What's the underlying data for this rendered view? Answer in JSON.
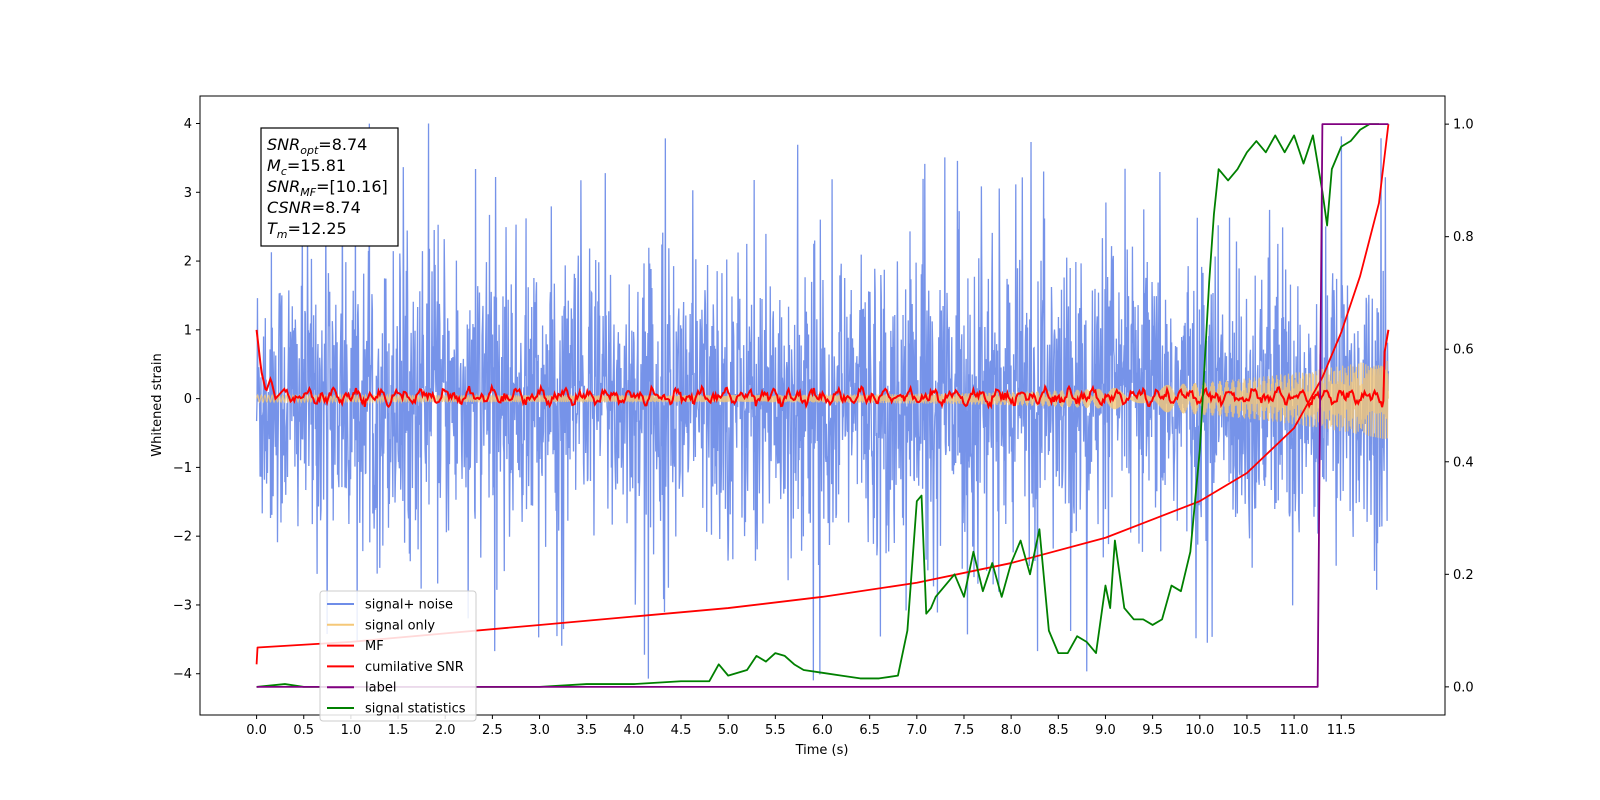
{
  "chart_data": {
    "type": "line",
    "title": "",
    "xlabel": "Time (s)",
    "ylabel": "Whitened strain",
    "ylabel_right": "",
    "xlim": [
      -0.6,
      12.6
    ],
    "ylim": [
      -4.6,
      4.4
    ],
    "ylim_right": [
      -0.05,
      1.05
    ],
    "x_ticks": [
      0.0,
      0.5,
      1.0,
      1.5,
      2.0,
      2.5,
      3.0,
      3.5,
      4.0,
      4.5,
      5.0,
      5.5,
      6.0,
      6.5,
      7.0,
      7.5,
      8.0,
      8.5,
      9.0,
      9.5,
      10.0,
      10.5,
      11.0,
      11.5
    ],
    "x_tick_labels": [
      "0.0",
      "0.5",
      "1.0",
      "1.5",
      "2.0",
      "2.5",
      "3.0",
      "3.5",
      "4.0",
      "4.5",
      "5.0",
      "5.5",
      "6.0",
      "6.5",
      "7.0",
      "7.5",
      "8.0",
      "8.5",
      "9.0",
      "9.5",
      "10.0",
      "10.5",
      "11.0",
      "11.5"
    ],
    "y_ticks": [
      -4,
      -3,
      -2,
      -1,
      0,
      1,
      2,
      3,
      4
    ],
    "y_tick_labels": [
      "−4",
      "−3",
      "−2",
      "−1",
      "0",
      "1",
      "2",
      "3",
      "4"
    ],
    "y_ticks_right": [
      0.0,
      0.2,
      0.4,
      0.6,
      0.8,
      1.0
    ],
    "y_tick_labels_right": [
      "0.0",
      "0.2",
      "0.4",
      "0.6",
      "0.8",
      "1.0"
    ],
    "grid": false,
    "legend_position": "lower-left",
    "series": [
      {
        "name": "signal+ noise",
        "axis": "left",
        "color": "#6f8de8",
        "note": "dense noise, roughly ±2.5 with spikes to ±4",
        "x_range": [
          0,
          12
        ]
      },
      {
        "name": "signal only",
        "axis": "left",
        "color": "#f5c878",
        "note": "chirp, amplitude growing to about ±0.6 near 12 s",
        "x_range": [
          0,
          12
        ]
      },
      {
        "name": "MF",
        "axis": "left",
        "color": "#ff0000",
        "x": [
          0.0,
          0.05,
          0.1,
          0.15,
          0.2,
          0.3,
          0.5,
          1.0,
          2.0,
          3.0,
          4.0,
          5.0,
          6.0,
          7.0,
          8.0,
          9.0,
          10.0,
          11.0,
          11.5,
          11.9,
          12.0
        ],
        "y": [
          1.0,
          0.4,
          0.1,
          0.3,
          0.0,
          0.15,
          0.05,
          0.1,
          0.05,
          0.1,
          0.05,
          0.15,
          0.05,
          0.1,
          0.15,
          0.1,
          0.15,
          0.1,
          0.2,
          0.2,
          1.0
        ]
      },
      {
        "name": "cumilative SNR",
        "axis": "right",
        "color": "#ff0000",
        "x": [
          0.0,
          0.01,
          1.0,
          2.0,
          3.0,
          4.0,
          5.0,
          6.0,
          7.0,
          8.0,
          9.0,
          10.0,
          10.5,
          11.0,
          11.3,
          11.5,
          11.7,
          11.9,
          12.0
        ],
        "y": [
          0.04,
          0.07,
          0.08,
          0.095,
          0.11,
          0.125,
          0.14,
          0.16,
          0.185,
          0.22,
          0.265,
          0.33,
          0.38,
          0.46,
          0.55,
          0.63,
          0.73,
          0.86,
          1.0
        ]
      },
      {
        "name": "label",
        "axis": "right",
        "color": "#800080",
        "x": [
          0.0,
          11.25,
          11.3,
          12.0
        ],
        "y": [
          0.0,
          0.0,
          1.0,
          1.0
        ]
      },
      {
        "name": "signal statistics",
        "axis": "right",
        "color": "#008000",
        "x": [
          0.0,
          0.3,
          0.5,
          1.0,
          2.0,
          3.0,
          3.5,
          4.0,
          4.5,
          4.8,
          4.9,
          5.0,
          5.2,
          5.3,
          5.4,
          5.5,
          5.6,
          5.7,
          5.8,
          6.0,
          6.2,
          6.4,
          6.6,
          6.8,
          6.9,
          7.0,
          7.05,
          7.1,
          7.15,
          7.2,
          7.3,
          7.4,
          7.5,
          7.6,
          7.7,
          7.8,
          7.9,
          8.0,
          8.1,
          8.2,
          8.3,
          8.4,
          8.5,
          8.6,
          8.7,
          8.8,
          8.9,
          9.0,
          9.05,
          9.1,
          9.2,
          9.3,
          9.4,
          9.5,
          9.6,
          9.7,
          9.8,
          9.9,
          10.0,
          10.1,
          10.15,
          10.2,
          10.3,
          10.4,
          10.5,
          10.6,
          10.7,
          10.8,
          10.9,
          11.0,
          11.1,
          11.2,
          11.3,
          11.35,
          11.4,
          11.5,
          11.6,
          11.7,
          11.8,
          11.9
        ],
        "y": [
          0.0,
          0.005,
          0.0,
          0.0,
          0.0,
          0.0,
          0.005,
          0.005,
          0.01,
          0.01,
          0.04,
          0.02,
          0.03,
          0.055,
          0.045,
          0.06,
          0.055,
          0.04,
          0.03,
          0.025,
          0.02,
          0.015,
          0.015,
          0.02,
          0.1,
          0.33,
          0.34,
          0.13,
          0.14,
          0.16,
          0.18,
          0.2,
          0.16,
          0.24,
          0.17,
          0.22,
          0.16,
          0.22,
          0.26,
          0.2,
          0.28,
          0.1,
          0.06,
          0.06,
          0.09,
          0.08,
          0.06,
          0.18,
          0.14,
          0.26,
          0.14,
          0.12,
          0.12,
          0.11,
          0.12,
          0.18,
          0.17,
          0.24,
          0.42,
          0.72,
          0.84,
          0.92,
          0.9,
          0.92,
          0.95,
          0.97,
          0.95,
          0.98,
          0.95,
          0.98,
          0.93,
          0.98,
          0.88,
          0.82,
          0.92,
          0.96,
          0.97,
          0.99,
          1.0,
          1.0
        ]
      }
    ],
    "annotation": {
      "lines": [
        {
          "main": "SNR",
          "sub": "opt",
          "value": "=8.74"
        },
        {
          "main": "M",
          "sub": "c",
          "value": "=15.81"
        },
        {
          "main": "SNR",
          "sub": "MF",
          "value": "=[10.16]"
        },
        {
          "main": "CSNR",
          "sub": "",
          "value": "=8.74"
        },
        {
          "main": "T",
          "sub": "m",
          "value": "=12.25"
        }
      ]
    }
  }
}
